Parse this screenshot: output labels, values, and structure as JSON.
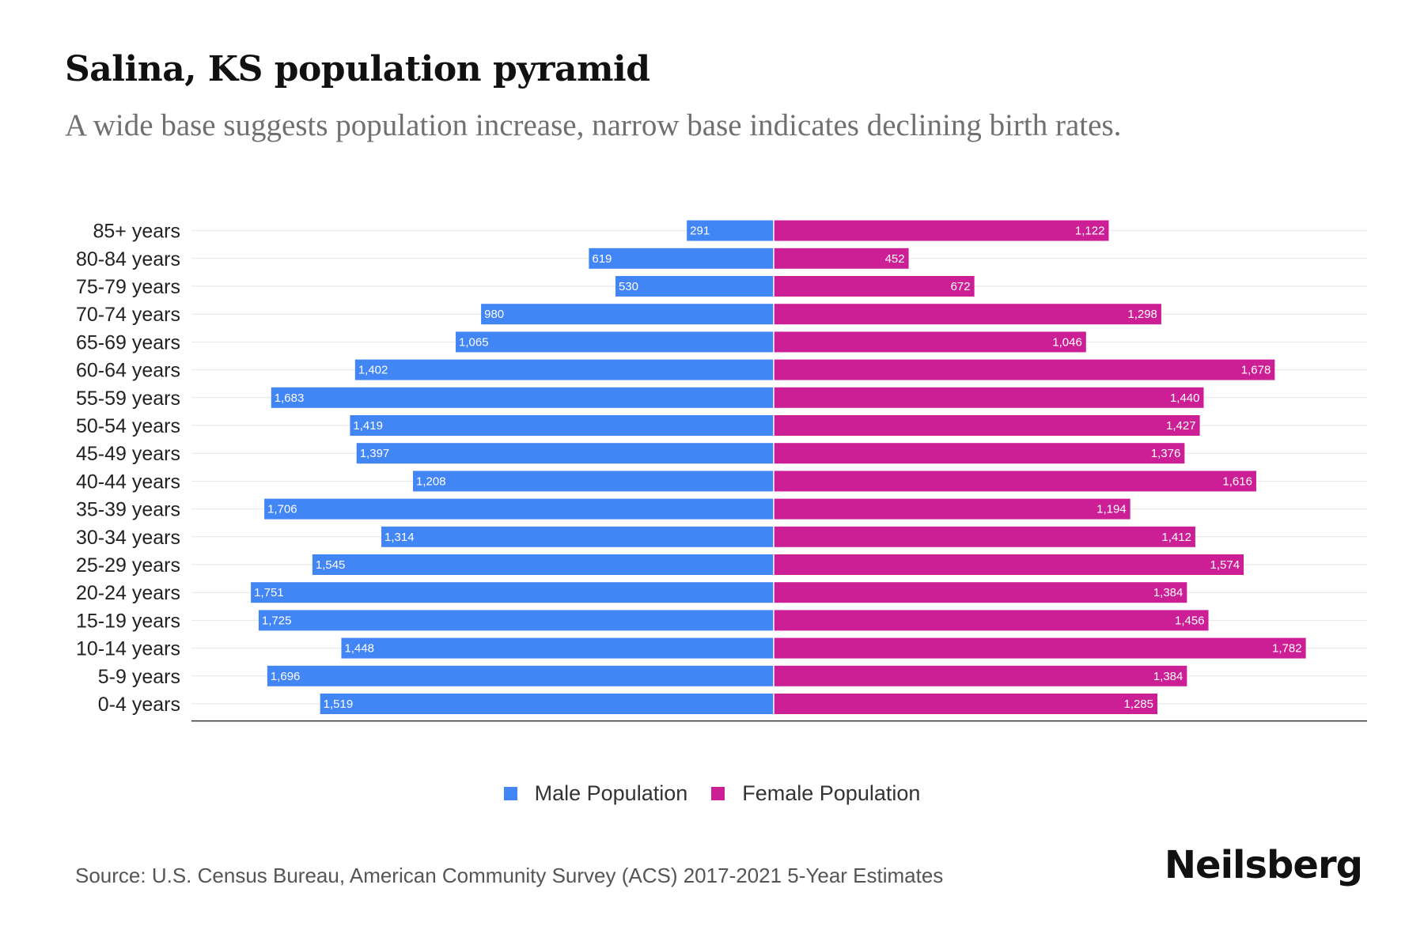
{
  "colors": {
    "male": "#4285f4",
    "female": "#cc1f96",
    "grid": "#e6e6e6",
    "axis": "#333333"
  },
  "chart_data": {
    "type": "bar",
    "orientation": "horizontal-diverging",
    "title": "Salina, KS population pyramid",
    "subtitle": "A wide base suggests population increase, narrow base indicates declining birth rates.",
    "categories": [
      "85+ years",
      "80-84 years",
      "75-79 years",
      "70-74 years",
      "65-69 years",
      "60-64 years",
      "55-59 years",
      "50-54 years",
      "45-49 years",
      "40-44 years",
      "35-39 years",
      "30-34 years",
      "25-29 years",
      "20-24 years",
      "15-19 years",
      "10-14 years",
      "5-9 years",
      "0-4 years"
    ],
    "series": [
      {
        "name": "Male Population",
        "color": "#4285f4",
        "values": [
          291,
          619,
          530,
          980,
          1065,
          1402,
          1683,
          1419,
          1397,
          1208,
          1706,
          1314,
          1545,
          1751,
          1725,
          1448,
          1696,
          1519
        ],
        "labels": [
          "291",
          "619",
          "530",
          "980",
          "1,065",
          "1,402",
          "1,683",
          "1,419",
          "1,397",
          "1,208",
          "1,706",
          "1,314",
          "1,545",
          "1,751",
          "1,725",
          "1,448",
          "1,696",
          "1,519"
        ]
      },
      {
        "name": "Female Population",
        "color": "#cc1f96",
        "values": [
          1122,
          452,
          672,
          1298,
          1046,
          1678,
          1440,
          1427,
          1376,
          1616,
          1194,
          1412,
          1574,
          1384,
          1456,
          1782,
          1384,
          1285
        ],
        "labels": [
          "1,122",
          "452",
          "672",
          "1,298",
          "1,046",
          "1,678",
          "1,440",
          "1,427",
          "1,376",
          "1,616",
          "1,194",
          "1,412",
          "1,574",
          "1,384",
          "1,456",
          "1,782",
          "1,384",
          "1,285"
        ]
      }
    ],
    "xlim": [
      -1950,
      1980
    ],
    "legend": "bottom-center"
  },
  "legend": {
    "male_label": "Male Population",
    "female_label": "Female Population"
  },
  "source": "Source: U.S. Census Bureau, American Community Survey (ACS) 2017-2021 5-Year Estimates",
  "brand": "Neilsberg"
}
